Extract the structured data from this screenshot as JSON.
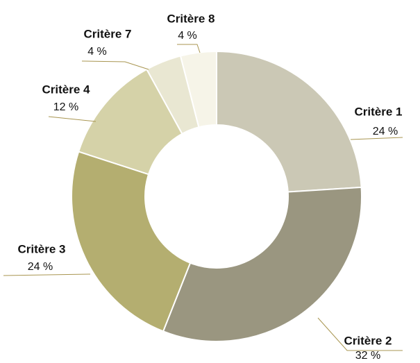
{
  "chart_data": {
    "type": "donut",
    "categories": [
      "Critère 1",
      "Critère 2",
      "Critère 3",
      "Critère 4",
      "Critère 7",
      "Critère 8"
    ],
    "values": [
      24,
      32,
      24,
      12,
      4,
      4
    ],
    "value_labels": [
      "24 %",
      "32 %",
      "24 %",
      "12 %",
      "4 %",
      "4 %"
    ],
    "colors": [
      "#cbc8b5",
      "#9a9680",
      "#b4ae70",
      "#d5d2a8",
      "#e9e7d2",
      "#f6f4e8"
    ]
  }
}
